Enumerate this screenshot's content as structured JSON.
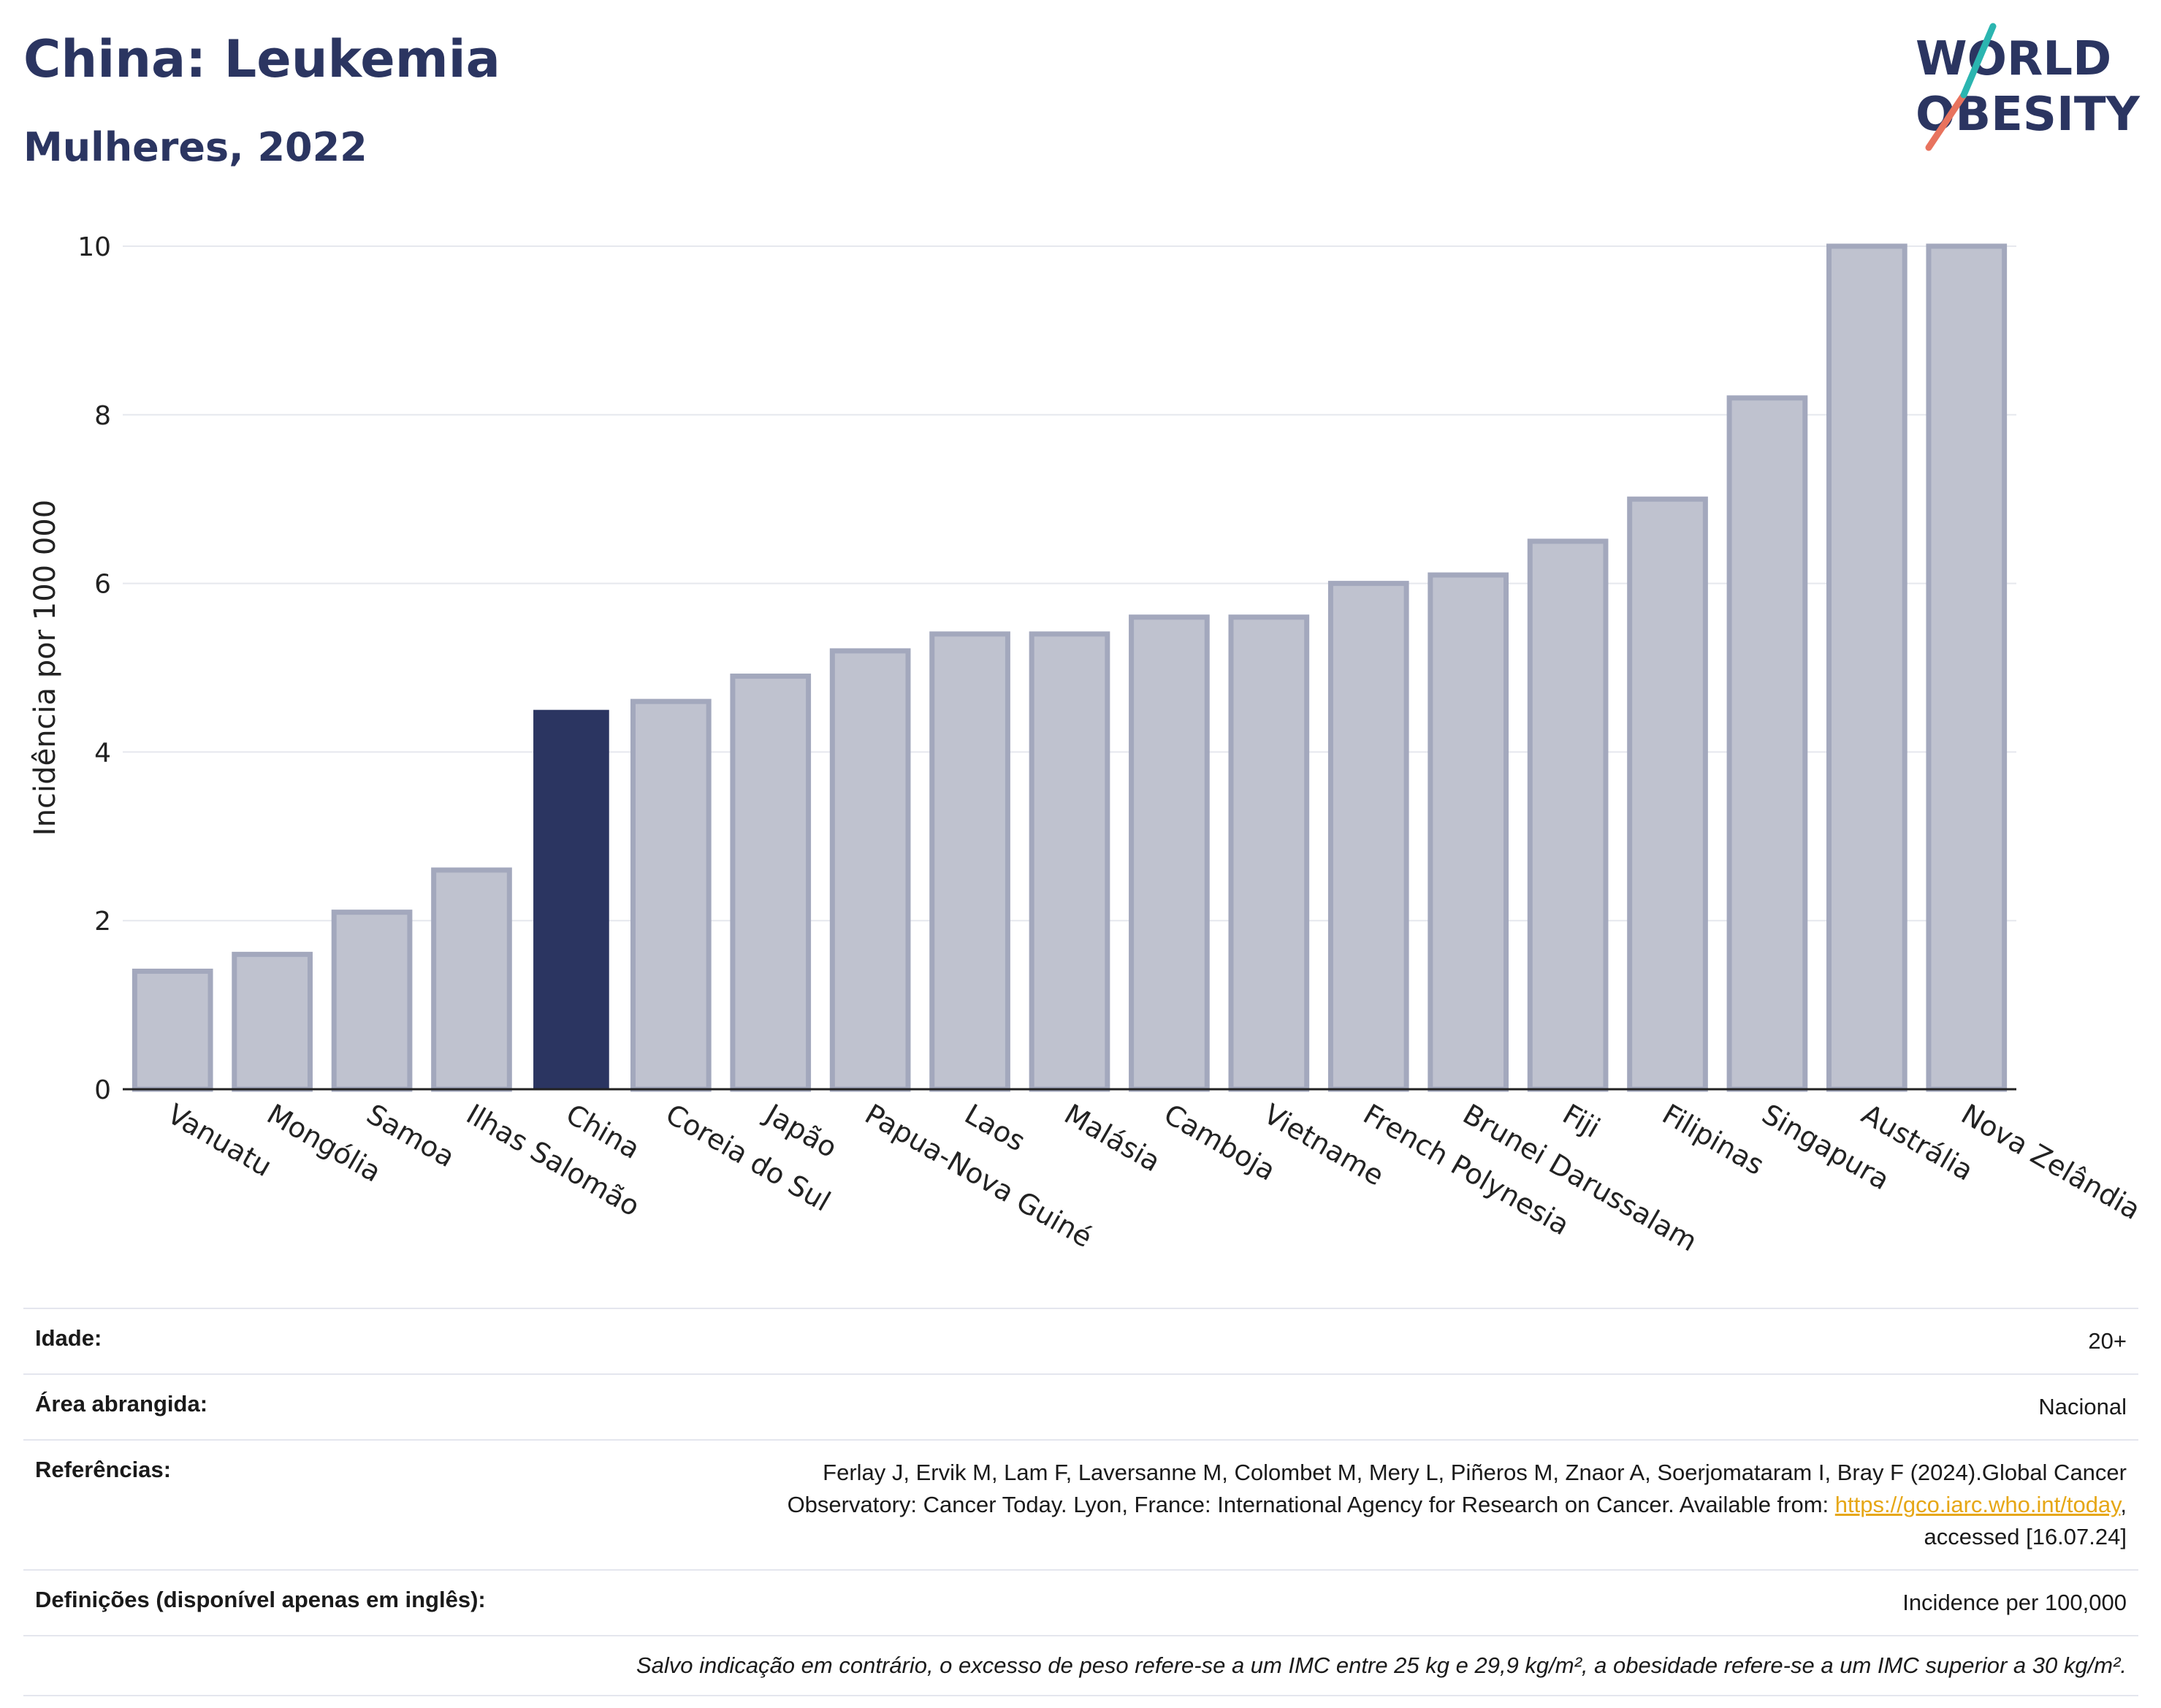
{
  "header": {
    "title": "China: Leukemia",
    "subtitle": "Mulheres, 2022",
    "logo_text_line1": "WORLD",
    "logo_text_line2": "OBESITY"
  },
  "chart_data": {
    "type": "bar",
    "title": "China: Leukemia",
    "subtitle": "Mulheres, 2022",
    "ylabel": "Incidência por 100 000",
    "xlabel": "",
    "ylim": [
      0,
      10
    ],
    "yticks": [
      0,
      2,
      4,
      6,
      8,
      10
    ],
    "grid": true,
    "categories": [
      "Vanuatu",
      "Mongólia",
      "Samoa",
      "Ilhas Salomão",
      "China",
      "Coreia do Sul",
      "Japão",
      "Papua-Nova Guiné",
      "Laos",
      "Malásia",
      "Camboja",
      "Vietname",
      "French Polynesia",
      "Brunei Darussalam",
      "Fiji",
      "Filipinas",
      "Singapura",
      "Austrália",
      "Nova Zelândia"
    ],
    "values": [
      1.4,
      1.6,
      2.1,
      2.6,
      4.5,
      4.6,
      4.9,
      5.2,
      5.4,
      5.4,
      5.6,
      5.6,
      6.0,
      6.1,
      6.5,
      7.0,
      8.2,
      10.0,
      10.0
    ],
    "highlight": "China",
    "colors": {
      "highlight": "#2b3561",
      "other_fill": "#bfc2cf",
      "other_stroke": "#a3a8bd"
    }
  },
  "info": {
    "age_label": "Idade:",
    "age_value": "20+",
    "area_label": "Área abrangida:",
    "area_value": "Nacional",
    "refs_label": "Referências:",
    "refs_text_1": "Ferlay J, Ervik M, Lam F, Laversanne M, Colombet M, Mery L, Piñeros M, Znaor A, Soerjomataram I, Bray F (2024).Global Cancer",
    "refs_text_2": "Observatory: Cancer Today. Lyon, France: International Agency for Research on Cancer. Available from: ",
    "refs_link": "https://gco.iarc.who.int/today",
    "refs_text_3": ",",
    "refs_text_4": "accessed [16.07.24]",
    "defs_label": "Definições (disponível apenas em inglês):",
    "defs_value": "Incidence per 100,000",
    "note": "Salvo indicação em contrário, o excesso de peso refere-se a um IMC entre 25 kg e 29,9 kg/m², a obesidade refere-se a um IMC superior a 30 kg/m²."
  }
}
